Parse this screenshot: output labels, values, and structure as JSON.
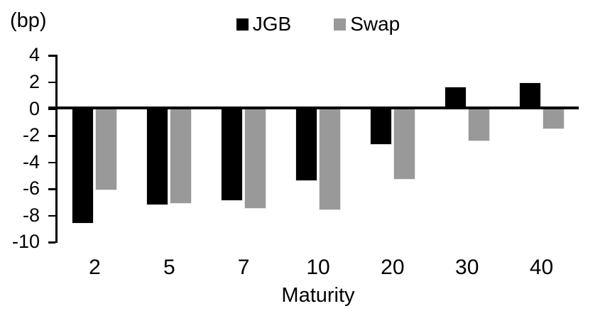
{
  "chart_data": {
    "type": "bar",
    "title": "",
    "unit_label": "(bp)",
    "xlabel": "Maturity",
    "categories": [
      "2",
      "5",
      "7",
      "10",
      "20",
      "30",
      "40"
    ],
    "series": [
      {
        "name": "JGB",
        "color": "#000000",
        "values": [
          -8.6,
          -7.2,
          -6.9,
          -5.4,
          -2.7,
          1.7,
          2.0
        ]
      },
      {
        "name": "Swap",
        "color": "#999999",
        "values": [
          -6.1,
          -7.1,
          -7.5,
          -7.6,
          -5.3,
          -2.4,
          -1.5
        ]
      }
    ],
    "ylim": [
      -10,
      4
    ],
    "yticks": [
      4,
      2,
      0,
      -2,
      -4,
      -6,
      -8,
      -10
    ],
    "grid": false,
    "legend_position": "top-center",
    "background": "#ffffff",
    "axis_color": "#000000",
    "bar_border_color": "#e7e7e7"
  }
}
